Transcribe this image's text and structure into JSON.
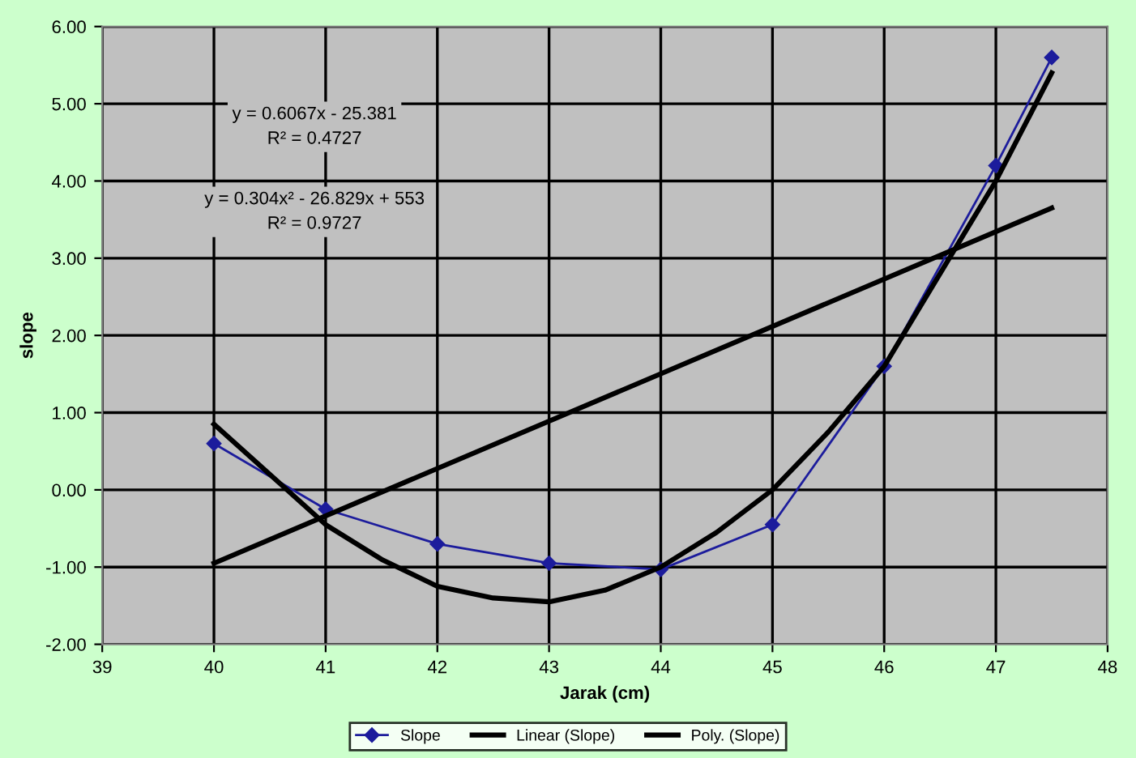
{
  "chart_data": {
    "type": "line",
    "xlabel": "Jarak (cm)",
    "ylabel": "slope",
    "xlim": [
      39,
      48
    ],
    "xticks": [
      39,
      40,
      41,
      42,
      43,
      44,
      45,
      46,
      47,
      48
    ],
    "ylim": [
      -2,
      6
    ],
    "yticks": [
      {
        "value": -2,
        "label": "-2.00"
      },
      {
        "value": -1,
        "label": "-1.00"
      },
      {
        "value": 0,
        "label": "0.00"
      },
      {
        "value": 1,
        "label": "1.00"
      },
      {
        "value": 2,
        "label": "2.00"
      },
      {
        "value": 3,
        "label": "3.00"
      },
      {
        "value": 4,
        "label": "4.00"
      },
      {
        "value": 5,
        "label": "5.00"
      },
      {
        "value": 6,
        "label": "6.00"
      }
    ],
    "grid": true,
    "legend": "bottom",
    "series": [
      {
        "name": "Slope",
        "color": "#1c1c9c",
        "marker": "diamond",
        "x": [
          40,
          41,
          42,
          43,
          44,
          45,
          46,
          47,
          47.5
        ],
        "values": [
          0.6,
          -0.25,
          -0.7,
          -0.95,
          -1.03,
          -0.45,
          1.6,
          4.2,
          5.6
        ]
      },
      {
        "name": "Linear (Slope)",
        "color": "#000000",
        "marker": "none",
        "x": [
          40,
          47.5
        ],
        "values": [
          -0.95,
          3.65
        ]
      },
      {
        "name": "Poly. (Slope)",
        "color": "#000000",
        "marker": "none",
        "x": [
          40,
          40.5,
          41,
          41.5,
          42,
          42.5,
          43,
          43.5,
          44,
          44.5,
          45,
          45.5,
          46,
          46.5,
          47,
          47.5
        ],
        "values": [
          0.85,
          0.2,
          -0.45,
          -0.9,
          -1.25,
          -1.4,
          -1.45,
          -1.3,
          -1.0,
          -0.55,
          0.0,
          0.75,
          1.6,
          2.8,
          4.0,
          5.4
        ]
      }
    ],
    "annotations": [
      "y = 0.6067x - 25.381\nR² = 0.4727",
      "y = 0.304x² - 26.829x + 553\nR² = 0.9727"
    ]
  }
}
